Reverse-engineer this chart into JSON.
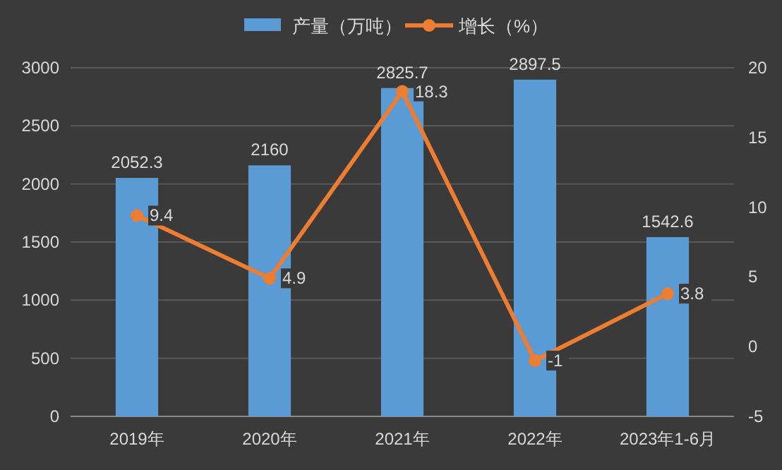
{
  "chart_data": {
    "type": "bar",
    "categories": [
      "2019年",
      "2020年",
      "2021年",
      "2022年",
      "2023年1-6月"
    ],
    "series": [
      {
        "name": "产量（万吨）",
        "color": "#5b9bd5",
        "values": [
          2052.3,
          2160,
          2825.7,
          2897.5,
          1542.6
        ]
      },
      {
        "name": "增长（%）",
        "type": "line",
        "axis": "y2",
        "color": "#ed7d31",
        "marker": "circle",
        "values": [
          9.4,
          4.9,
          18.3,
          -1,
          3.8
        ]
      }
    ],
    "ylim": [
      0,
      3000
    ],
    "yticks": [
      0,
      500,
      1000,
      1500,
      2000,
      2500,
      3000
    ],
    "y2lim": [
      -5,
      20
    ],
    "y2ticks": [
      -5,
      0,
      5,
      10,
      15,
      20
    ],
    "grid": "y",
    "legend": "top",
    "data_labels": true
  }
}
